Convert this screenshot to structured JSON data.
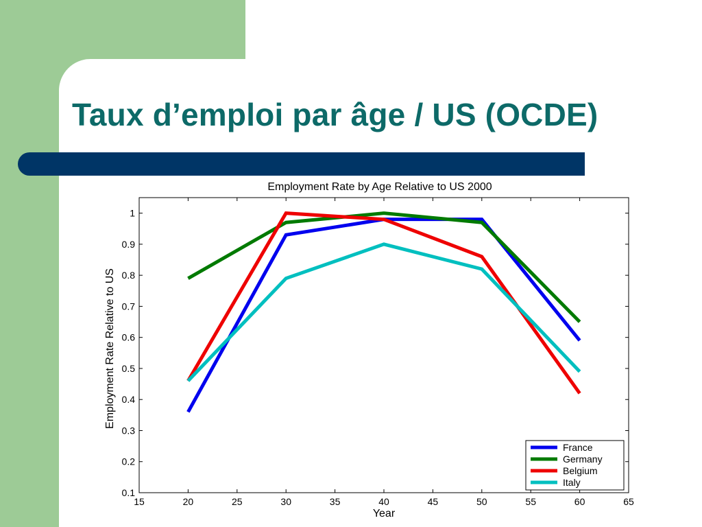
{
  "slide": {
    "title": "Taux d’emploi par âge / US (OCDE)",
    "colors": {
      "panel": "#9dcb96",
      "title": "#0d6a68",
      "bar": "#003566"
    }
  },
  "chart_data": {
    "type": "line",
    "title": "Employment Rate by Age Relative to US 2000",
    "xlabel": "Year",
    "ylabel": "Employment Rate Relative to US",
    "xlim": [
      15,
      65
    ],
    "ylim": [
      0.1,
      1.05
    ],
    "xticks": [
      "15",
      "20",
      "25",
      "30",
      "35",
      "40",
      "45",
      "50",
      "55",
      "60",
      "65"
    ],
    "yticks": [
      "0.1",
      "0.2",
      "0.3",
      "0.4",
      "0.5",
      "0.6",
      "0.7",
      "0.8",
      "0.9",
      "1"
    ],
    "grid": false,
    "legend_position": "bottom-right",
    "x": [
      20,
      30,
      40,
      50,
      60
    ],
    "series": [
      {
        "name": "France",
        "color": "#0000ee",
        "values": [
          0.36,
          0.93,
          0.98,
          0.98,
          0.59
        ]
      },
      {
        "name": "Germany",
        "color": "#007a00",
        "values": [
          0.79,
          0.97,
          1.0,
          0.97,
          0.65
        ]
      },
      {
        "name": "Belgium",
        "color": "#ee0000",
        "values": [
          0.46,
          1.0,
          0.98,
          0.86,
          0.42
        ]
      },
      {
        "name": "Italy",
        "color": "#00bfbf",
        "values": [
          0.46,
          0.79,
          0.9,
          0.82,
          0.49
        ]
      }
    ]
  }
}
